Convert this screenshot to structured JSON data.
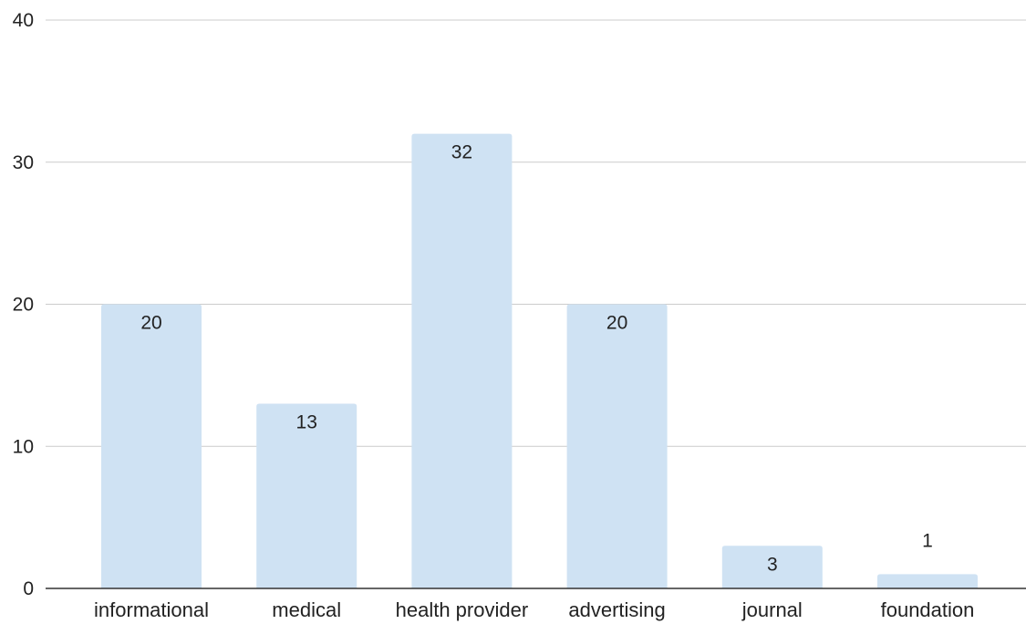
{
  "chart_data": {
    "type": "bar",
    "title": "",
    "xlabel": "",
    "ylabel": "",
    "categories": [
      "informational",
      "medical",
      "health provider",
      "advertising",
      "journal",
      "foundation"
    ],
    "values": [
      20,
      13,
      32,
      20,
      3,
      1
    ],
    "data_labels": [
      "20",
      "13",
      "32",
      "20",
      "3",
      "1"
    ],
    "ylim": [
      0,
      40
    ],
    "yticks": [
      0,
      10,
      20,
      30,
      40
    ],
    "ytick_labels": [
      "0",
      "10",
      "20",
      "30",
      "40"
    ],
    "grid": true,
    "legend": "none",
    "bar_color": "#cfe2f3",
    "label_color": "#222222",
    "gridline_color": "#cccccc"
  }
}
